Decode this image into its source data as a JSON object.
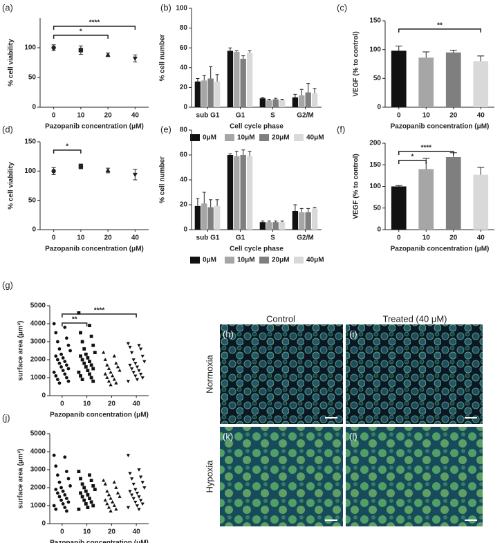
{
  "chart_data": [
    {
      "type": "errorbar",
      "panel": "(a)",
      "ylabel": "% cell viability",
      "xlabel": "Pazopanib concentration (μM)",
      "categories": [
        "0",
        "10",
        "20",
        "40"
      ],
      "values": [
        100,
        96,
        88,
        82
      ],
      "errors": [
        5,
        7,
        3,
        6
      ],
      "markers": [
        "circle",
        "square",
        "triangle",
        "triangle-down"
      ],
      "color": "#222222",
      "ylim": [
        0,
        150
      ],
      "yticks": [
        0,
        50,
        100
      ],
      "brackets": [
        {
          "label": "****",
          "between": [
            "0",
            "40"
          ]
        },
        {
          "label": "*",
          "between": [
            "0",
            "20"
          ]
        }
      ]
    },
    {
      "type": "bar",
      "panel": "(b)",
      "ylabel": "% cell number",
      "xlabel": "Cell cycle phase",
      "categories": [
        "sub G1",
        "G1",
        "S",
        "G2/M"
      ],
      "legend": "bottom",
      "series": [
        {
          "name": "0μM",
          "color": "#111111",
          "values": [
            26,
            57,
            9,
            10
          ],
          "errors": [
            3,
            3,
            1,
            3
          ]
        },
        {
          "name": "10μM",
          "color": "#a6a6a6",
          "values": [
            27,
            56,
            7,
            12
          ],
          "errors": [
            5,
            1,
            1,
            6
          ]
        },
        {
          "name": "20μM",
          "color": "#7f7f7f",
          "values": [
            29,
            49,
            8,
            15
          ],
          "errors": [
            12,
            3,
            1,
            9
          ]
        },
        {
          "name": "40μM",
          "color": "#d9d9d9",
          "values": [
            26,
            55,
            7,
            14
          ],
          "errors": [
            7,
            2,
            1,
            5
          ]
        }
      ],
      "ylim": [
        0,
        100
      ],
      "yticks": [
        0,
        20,
        40,
        60,
        80,
        100
      ],
      "brackets": []
    },
    {
      "type": "bar",
      "panel": "(c)",
      "ylabel": "VEGF (% to control)",
      "xlabel": "Pazopanib concentration (μM)",
      "categories": [
        "0",
        "10",
        "20",
        "40"
      ],
      "values": [
        98,
        86,
        95,
        80
      ],
      "errors": [
        8,
        10,
        4,
        9
      ],
      "colors": [
        "#111111",
        "#a6a6a6",
        "#7f7f7f",
        "#d9d9d9"
      ],
      "ylim": [
        0,
        150
      ],
      "yticks": [
        0,
        50,
        100,
        150
      ],
      "brackets": [
        {
          "label": "**",
          "between": [
            "0",
            "40"
          ]
        }
      ]
    },
    {
      "type": "errorbar",
      "panel": "(d)",
      "ylabel": "% cell viability",
      "xlabel": "Pazopanib concentration (μM)",
      "categories": [
        "0",
        "10",
        "20",
        "40"
      ],
      "values": [
        100,
        108,
        101,
        94
      ],
      "errors": [
        6,
        4,
        4,
        9
      ],
      "markers": [
        "circle",
        "square",
        "triangle",
        "triangle-down"
      ],
      "color": "#222222",
      "ylim": [
        0,
        150
      ],
      "yticks": [
        0,
        50,
        100,
        150
      ],
      "brackets": [
        {
          "label": "*",
          "between": [
            "0",
            "10"
          ]
        }
      ]
    },
    {
      "type": "bar",
      "panel": "(e)",
      "ylabel": "% cell number",
      "xlabel": "Cell cycle phase",
      "categories": [
        "sub G1",
        "G1",
        "S",
        "G2/M"
      ],
      "legend": "bottom",
      "series": [
        {
          "name": "0μM",
          "color": "#111111",
          "values": [
            19,
            60,
            6,
            15
          ],
          "errors": [
            6,
            1,
            1,
            5
          ]
        },
        {
          "name": "10μM",
          "color": "#a6a6a6",
          "values": [
            21,
            59,
            6,
            14
          ],
          "errors": [
            9,
            4,
            1,
            3
          ]
        },
        {
          "name": "20μM",
          "color": "#7f7f7f",
          "values": [
            18,
            60,
            6,
            14
          ],
          "errors": [
            6,
            4,
            1,
            3
          ]
        },
        {
          "name": "40μM",
          "color": "#d9d9d9",
          "values": [
            19,
            59,
            6,
            17
          ],
          "errors": [
            5,
            4,
            1,
            1
          ]
        }
      ],
      "ylim": [
        0,
        80
      ],
      "yticks": [
        0,
        20,
        40,
        60,
        80
      ],
      "brackets": []
    },
    {
      "type": "bar",
      "panel": "(f)",
      "ylabel": "VEGF (% to control)",
      "xlabel": "Pazopanib concentration (μM)",
      "categories": [
        "0",
        "10",
        "20",
        "40"
      ],
      "values": [
        100,
        140,
        168,
        127
      ],
      "errors": [
        2,
        25,
        10,
        17
      ],
      "colors": [
        "#111111",
        "#a6a6a6",
        "#7f7f7f",
        "#d9d9d9"
      ],
      "ylim": [
        0,
        200
      ],
      "yticks": [
        0,
        50,
        100,
        150,
        200
      ],
      "brackets": [
        {
          "label": "****",
          "between": [
            "0",
            "20"
          ]
        },
        {
          "label": "*",
          "between": [
            "0",
            "10"
          ]
        }
      ]
    },
    {
      "type": "dot",
      "panel": "(g)",
      "ylabel": "surface area (μm²)",
      "xlabel": "Pazopanib concentration (μM)",
      "categories": [
        "0",
        "10",
        "20",
        "40"
      ],
      "markers": [
        "circle",
        "square",
        "triangle",
        "triangle-down"
      ],
      "color": "#111111",
      "groups": [
        {
          "values": [
            4000,
            3800,
            3500,
            3200,
            3000,
            2800,
            2600,
            2500,
            2300,
            2200,
            2100,
            2000,
            1900,
            1800,
            1700,
            1600,
            1500,
            1400,
            1300,
            1200,
            1100,
            1000,
            900,
            800,
            700
          ]
        },
        {
          "values": [
            4600,
            3900,
            3500,
            3300,
            3000,
            2800,
            2600,
            2400,
            2300,
            2200,
            2100,
            2000,
            1900,
            1800,
            1700,
            1600,
            1500,
            1400,
            1300,
            1200,
            1100,
            1000,
            900,
            800
          ]
        },
        {
          "values": [
            2400,
            2200,
            2000,
            1800,
            1700,
            1600,
            1500,
            1400,
            1300,
            1200,
            1100,
            1000,
            900,
            800,
            700,
            600
          ]
        },
        {
          "values": [
            2900,
            2800,
            2700,
            2600,
            2400,
            2200,
            2000,
            1900,
            1800,
            1700,
            1600,
            1500,
            1400,
            1300,
            1200,
            1100,
            1000,
            900,
            800
          ]
        }
      ],
      "ylim": [
        0,
        5000
      ],
      "yticks": [
        0,
        1000,
        2000,
        3000,
        4000,
        5000
      ],
      "brackets": [
        {
          "label": "****",
          "between": [
            "0",
            "40"
          ]
        },
        {
          "label": "**",
          "between": [
            "0",
            "10"
          ]
        }
      ]
    },
    {
      "type": "dot",
      "panel": "(j)",
      "ylabel": "surface area (μm²)",
      "xlabel": "Pazopanib concentration (μM)",
      "categories": [
        "0",
        "10",
        "20",
        "40"
      ],
      "markers": [
        "circle",
        "square",
        "triangle",
        "triangle-down"
      ],
      "color": "#111111",
      "groups": [
        {
          "values": [
            3800,
            3700,
            3200,
            2900,
            2700,
            2500,
            2300,
            2100,
            2000,
            1900,
            1800,
            1700,
            1600,
            1500,
            1400,
            1300,
            1200,
            1100,
            1000,
            900,
            800,
            700
          ]
        },
        {
          "values": [
            2900,
            2700,
            2500,
            2400,
            2200,
            2100,
            2000,
            1900,
            1800,
            1700,
            1600,
            1500,
            1400,
            1300,
            1200,
            1100,
            1000,
            900,
            800
          ]
        },
        {
          "values": [
            2400,
            2300,
            2200,
            2000,
            1800,
            1700,
            1600,
            1500,
            1400,
            1300,
            1200,
            1100,
            1000,
            900,
            800,
            700
          ]
        },
        {
          "values": [
            3800,
            3000,
            2800,
            2600,
            2500,
            2300,
            2200,
            2000,
            1900,
            1800,
            1700,
            1600,
            1500,
            1400,
            1300,
            1200,
            1100,
            1000,
            900,
            800
          ]
        }
      ],
      "ylim": [
        0,
        5000
      ],
      "yticks": [
        0,
        1000,
        2000,
        3000,
        4000,
        5000
      ],
      "brackets": []
    }
  ],
  "micrographs": {
    "columns": [
      "Control",
      "Treated (40 μM)"
    ],
    "rows": [
      "Normoxia",
      "Hypoxia"
    ],
    "panels": [
      "(h)",
      "(i)",
      "(k)",
      "(l)"
    ]
  }
}
